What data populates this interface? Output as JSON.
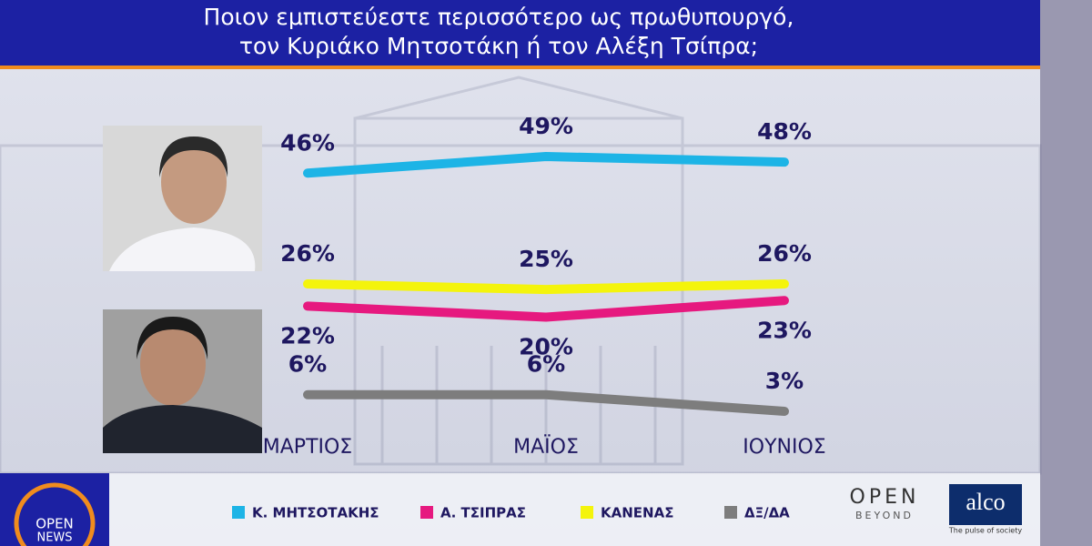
{
  "chart_data": {
    "type": "line",
    "title": [
      "Ποιον εμπιστεύεστε περισσότερο ως πρωθυπουργό,",
      "τον Κυριάκο Μητσοτάκη ή τον Αλέξη Τσίπρα;"
    ],
    "categories": [
      "ΜΑΡΤΙΟΣ",
      "ΜΑΪΟΣ",
      "ΙΟΥΝΙΟΣ"
    ],
    "series": [
      {
        "name": "Κ. ΜΗΤΣΟΤΑΚΗΣ",
        "color": "#1db4e6",
        "values": [
          46,
          49,
          48
        ],
        "value_labels": [
          "46%",
          "49%",
          "48%"
        ]
      },
      {
        "name": "Α. ΤΣΙΠΡΑΣ",
        "color": "#e6197f",
        "values": [
          22,
          20,
          23
        ],
        "value_labels": [
          "22%",
          "20%",
          "23%"
        ]
      },
      {
        "name": "ΚΑΝΕΝΑΣ",
        "color": "#f4f40c",
        "values": [
          26,
          25,
          26
        ],
        "value_labels": [
          "26%",
          "25%",
          "26%"
        ]
      },
      {
        "name": "ΔΞ/ΔΑ",
        "color": "#7d7d7d",
        "values": [
          6,
          6,
          3
        ],
        "value_labels": [
          "6%",
          "6%",
          "3%"
        ]
      }
    ]
  },
  "branding": {
    "channel": [
      "OPEN",
      "NEWS"
    ],
    "open_beyond": [
      "OPEN",
      "BEYOND"
    ],
    "pollster": "alco",
    "pollster_tagline": "The pulse of society"
  }
}
